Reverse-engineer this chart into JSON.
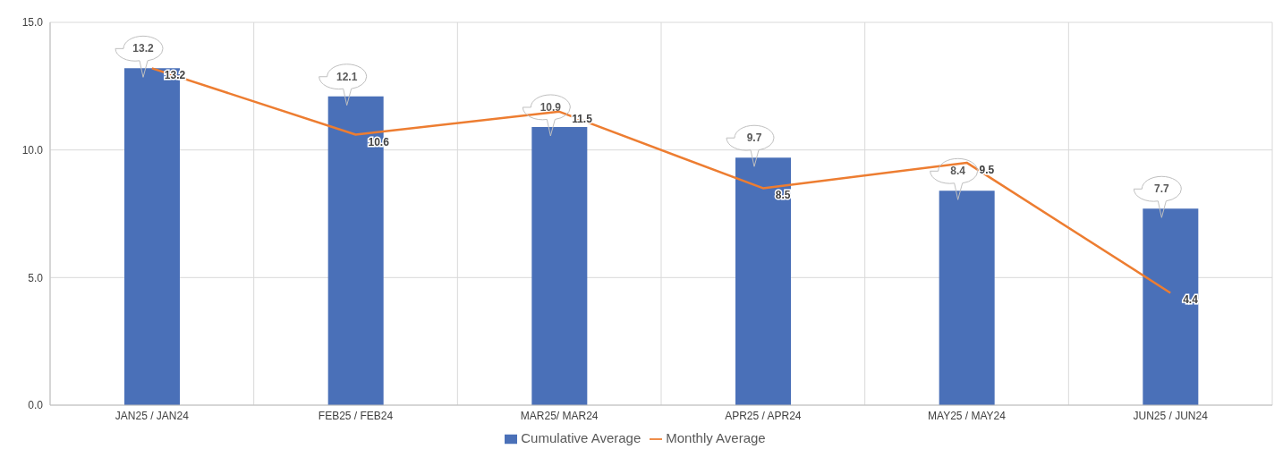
{
  "chart_data": {
    "type": "bar",
    "categories": [
      "JAN25 / JAN24",
      "FEB25 / FEB24",
      "MAR25/ MAR24",
      "APR25 / APR24",
      "MAY25 / MAY24",
      "JUN25 / JUN24"
    ],
    "series": [
      {
        "name": "Cumulative Average",
        "color": "#4a70b8",
        "values": [
          13.2,
          12.1,
          10.9,
          9.7,
          8.4,
          7.7
        ]
      },
      {
        "name": "Monthly Average",
        "type": "line",
        "color": "#ed7d31",
        "values": [
          13.2,
          10.6,
          11.5,
          8.5,
          9.5,
          4.4
        ]
      }
    ],
    "ylim": [
      0,
      15
    ],
    "yticks": [
      {
        "value": 0,
        "label": "0.0"
      },
      {
        "value": 5,
        "label": "5.0"
      },
      {
        "value": 10,
        "label": "10.0"
      },
      {
        "value": 15,
        "label": "15.0"
      }
    ],
    "grid": true,
    "legend": "bottom",
    "data_labels": true,
    "marker": "none",
    "line_style": "solid"
  }
}
